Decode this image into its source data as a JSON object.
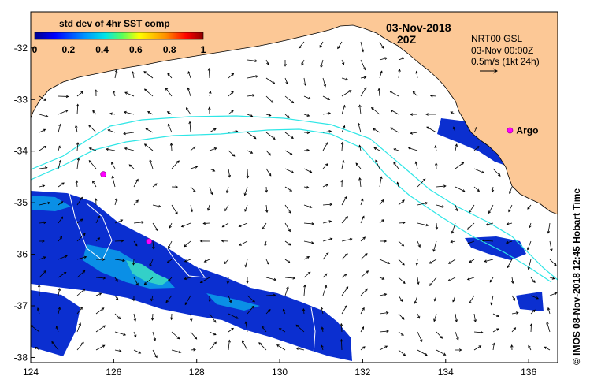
{
  "map": {
    "colorbar": {
      "title": "std dev of 4hr SST comp",
      "ticks": [
        "0",
        "0.2",
        "0.4",
        "0.6",
        "0.8",
        "1"
      ],
      "range": [
        0,
        1
      ]
    },
    "date": "03-Nov-2018",
    "time": "20Z",
    "info": {
      "line1": "NRT00 GSL",
      "line2": "03-Nov 00:00Z",
      "line3": "0.5m/s (1kt 24h)"
    },
    "credit": "© IMOS 08-Nov-2018 12:45 Hobart Time",
    "argo_label": "Argo",
    "x_ticks": [
      "124",
      "126",
      "128",
      "130",
      "132",
      "134",
      "136"
    ],
    "y_ticks": [
      "-32",
      "-33",
      "-34",
      "-35",
      "-36",
      "-37",
      "-38"
    ],
    "lon_range": [
      124,
      136.7
    ],
    "lat_range": [
      -38.1,
      -31.3
    ],
    "argo_floats": [
      {
        "lon": 125.75,
        "lat": -34.45
      },
      {
        "lon": 126.85,
        "lat": -35.75
      },
      {
        "lon": 135.55,
        "lat": -33.6
      }
    ],
    "colors": {
      "land": "#fcc896",
      "contour": "#2ee6e6",
      "argo": "#ff00ff",
      "sst_low": "#00008c",
      "sst_mid": "#00c8c8"
    },
    "icons": [
      "argo-float-icon",
      "scale-arrow-icon"
    ]
  }
}
